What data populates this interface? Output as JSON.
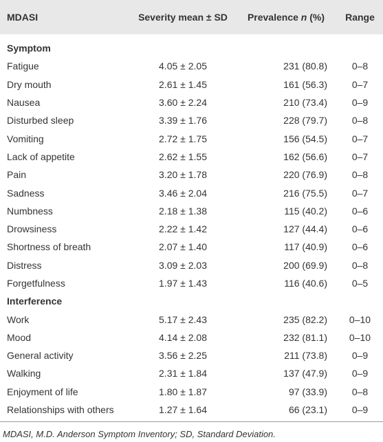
{
  "header": {
    "mdasi": "MDASI",
    "severity": "Severity mean ± SD",
    "prevalence": [
      "Prevalence",
      "n",
      "(%)"
    ],
    "range": "Range"
  },
  "sections": [
    {
      "title": "Symptom",
      "rows": [
        [
          "Fatigue",
          "4.05 ± 2.05",
          "231 (80.8)",
          "0–8"
        ],
        [
          "Dry mouth",
          "2.61 ± 1.45",
          "161 (56.3)",
          "0–7"
        ],
        [
          "Nausea",
          "3.60 ± 2.24",
          "210 (73.4)",
          "0–9"
        ],
        [
          "Disturbed sleep",
          "3.39 ± 1.76",
          "228 (79.7)",
          "0–8"
        ],
        [
          "Vomiting",
          "2.72 ± 1.75",
          "156 (54.5)",
          "0–7"
        ],
        [
          "Lack of appetite",
          "2.62 ± 1.55",
          "162 (56.6)",
          "0–7"
        ],
        [
          "Pain",
          "3.20 ± 1.78",
          "220 (76.9)",
          "0–8"
        ],
        [
          "Sadness",
          "3.46 ± 2.04",
          "216 (75.5)",
          "0–7"
        ],
        [
          "Numbness",
          "2.18 ± 1.38",
          "115 (40.2)",
          "0–6"
        ],
        [
          "Drowsiness",
          "2.22 ± 1.42",
          "127 (44.4)",
          "0–6"
        ],
        [
          "Shortness of breath",
          "2.07 ± 1.40",
          "117 (40.9)",
          "0–6"
        ],
        [
          "Distress",
          "3.09 ± 2.03",
          "200 (69.9)",
          "0–8"
        ],
        [
          "Forgetfulness",
          "1.97 ± 1.43",
          "116 (40.6)",
          "0–5"
        ]
      ]
    },
    {
      "title": "Interference",
      "rows": [
        [
          "Work",
          "5.17 ± 2.43",
          "235 (82.2)",
          "0–10"
        ],
        [
          "Mood",
          "4.14 ± 2.08",
          "232 (81.1)",
          "0–10"
        ],
        [
          "General activity",
          "3.56 ± 2.25",
          "211 (73.8)",
          "0–9"
        ],
        [
          "Walking",
          "2.31 ± 1.84",
          "137 (47.9)",
          "0–9"
        ],
        [
          "Enjoyment of life",
          "1.80 ± 1.87",
          "97 (33.9)",
          "0–8"
        ],
        [
          "Relationships with others",
          "1.27 ± 1.64",
          "66 (23.1)",
          "0–9"
        ]
      ]
    }
  ],
  "footnote": "MDASI, M.D. Anderson Symptom Inventory; SD, Standard Deviation."
}
